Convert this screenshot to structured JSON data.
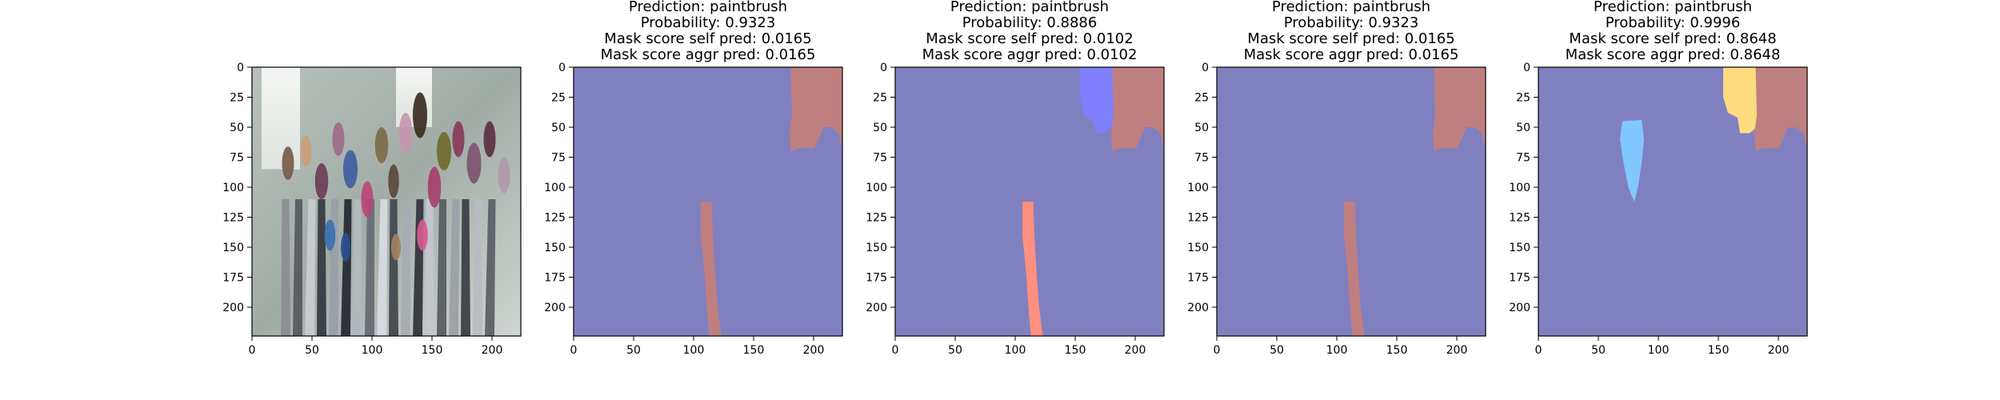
{
  "figure": {
    "background": "#ffffff"
  },
  "chart_data": [
    {
      "type": "heatmap",
      "content": "photo",
      "title_lines": [],
      "xlim": [
        0,
        224
      ],
      "ylim": [
        224,
        0
      ],
      "x_ticks": [
        0,
        50,
        100,
        150,
        200
      ],
      "y_ticks": [
        0,
        25,
        50,
        75,
        100,
        125,
        150,
        175,
        200
      ],
      "regions": []
    },
    {
      "type": "heatmap",
      "content": "mask",
      "title_lines": [
        "Prediction: paintbrush",
        "Probability: 0.9323",
        "Mask score self pred: 0.0165",
        "Mask score aggr pred: 0.0165"
      ],
      "xlim": [
        0,
        224
      ],
      "ylim": [
        224,
        0
      ],
      "x_ticks": [
        0,
        50,
        100,
        150,
        200
      ],
      "y_ticks": [
        0,
        25,
        50,
        75,
        100,
        125,
        150,
        175,
        200
      ],
      "background_color": "#8080c0",
      "regions": [
        {
          "color": "#c07f7f",
          "points": [
            [
              181,
              0
            ],
            [
              224,
              0
            ],
            [
              224,
              70
            ],
            [
              221,
              55
            ],
            [
              215,
              50
            ],
            [
              208,
              50
            ],
            [
              204,
              60
            ],
            [
              200,
              68
            ],
            [
              194,
              67
            ],
            [
              186,
              68
            ],
            [
              181,
              70
            ],
            [
              180,
              55
            ],
            [
              182,
              40
            ]
          ]
        },
        {
          "color": "#c07f7f",
          "points": [
            [
              106,
              112
            ],
            [
              115,
              112
            ],
            [
              116,
              140
            ],
            [
              118,
              175
            ],
            [
              120,
              200
            ],
            [
              123,
              224
            ],
            [
              113,
              224
            ],
            [
              111,
              200
            ],
            [
              109,
              170
            ],
            [
              106,
              140
            ]
          ]
        }
      ]
    },
    {
      "type": "heatmap",
      "content": "mask",
      "title_lines": [
        "Prediction: paintbrush",
        "Probability: 0.8886",
        "Mask score self pred: 0.0102",
        "Mask score aggr pred: 0.0102"
      ],
      "xlim": [
        0,
        224
      ],
      "ylim": [
        224,
        0
      ],
      "x_ticks": [
        0,
        50,
        100,
        150,
        200
      ],
      "y_ticks": [
        0,
        25,
        50,
        75,
        100,
        125,
        150,
        175,
        200
      ],
      "background_color": "#8080c0",
      "regions": [
        {
          "color": "#8080ff",
          "points": [
            [
              154,
              0
            ],
            [
              186,
              0
            ],
            [
              185,
              30
            ],
            [
              181,
              50
            ],
            [
              174,
              55
            ],
            [
              168,
              55
            ],
            [
              165,
              45
            ],
            [
              157,
              40
            ],
            [
              154,
              25
            ]
          ]
        },
        {
          "color": "#c07f7f",
          "points": [
            [
              181,
              0
            ],
            [
              224,
              0
            ],
            [
              224,
              70
            ],
            [
              221,
              55
            ],
            [
              215,
              50
            ],
            [
              208,
              50
            ],
            [
              204,
              60
            ],
            [
              200,
              68
            ],
            [
              194,
              67
            ],
            [
              186,
              68
            ],
            [
              181,
              70
            ],
            [
              180,
              55
            ],
            [
              182,
              40
            ]
          ]
        },
        {
          "color": "#ff8f80",
          "points": [
            [
              106,
              112
            ],
            [
              115,
              112
            ],
            [
              116,
              140
            ],
            [
              118,
              175
            ],
            [
              120,
              200
            ],
            [
              123,
              224
            ],
            [
              113,
              224
            ],
            [
              111,
              200
            ],
            [
              109,
              170
            ],
            [
              106,
              140
            ]
          ]
        }
      ]
    },
    {
      "type": "heatmap",
      "content": "mask",
      "title_lines": [
        "Prediction: paintbrush",
        "Probability: 0.9323",
        "Mask score self pred: 0.0165",
        "Mask score aggr pred: 0.0165"
      ],
      "xlim": [
        0,
        224
      ],
      "ylim": [
        224,
        0
      ],
      "x_ticks": [
        0,
        50,
        100,
        150,
        200
      ],
      "y_ticks": [
        0,
        25,
        50,
        75,
        100,
        125,
        150,
        175,
        200
      ],
      "background_color": "#8080c0",
      "regions": [
        {
          "color": "#c07f7f",
          "points": [
            [
              181,
              0
            ],
            [
              224,
              0
            ],
            [
              224,
              70
            ],
            [
              221,
              55
            ],
            [
              215,
              50
            ],
            [
              208,
              50
            ],
            [
              204,
              60
            ],
            [
              200,
              68
            ],
            [
              194,
              67
            ],
            [
              186,
              68
            ],
            [
              181,
              70
            ],
            [
              180,
              55
            ],
            [
              182,
              40
            ]
          ]
        },
        {
          "color": "#c07f7f",
          "points": [
            [
              106,
              112
            ],
            [
              115,
              112
            ],
            [
              116,
              140
            ],
            [
              118,
              175
            ],
            [
              120,
              200
            ],
            [
              123,
              224
            ],
            [
              113,
              224
            ],
            [
              111,
              200
            ],
            [
              109,
              170
            ],
            [
              106,
              140
            ]
          ]
        }
      ]
    },
    {
      "type": "heatmap",
      "content": "mask",
      "title_lines": [
        "Prediction: paintbrush",
        "Probability: 0.9996",
        "Mask score self pred: 0.8648",
        "Mask score aggr pred: 0.8648"
      ],
      "xlim": [
        0,
        224
      ],
      "ylim": [
        224,
        0
      ],
      "x_ticks": [
        0,
        50,
        100,
        150,
        200
      ],
      "y_ticks": [
        0,
        25,
        50,
        75,
        100,
        125,
        150,
        175,
        200
      ],
      "background_color": "#8080c0",
      "regions": [
        {
          "color": "#ffdc80",
          "points": [
            [
              154,
              0
            ],
            [
              186,
              0
            ],
            [
              185,
              30
            ],
            [
              182,
              50
            ],
            [
              176,
              55
            ],
            [
              168,
              55
            ],
            [
              166,
              42
            ],
            [
              158,
              38
            ],
            [
              154,
              25
            ]
          ]
        },
        {
          "color": "#c07f7f",
          "points": [
            [
              181,
              0
            ],
            [
              224,
              0
            ],
            [
              224,
              70
            ],
            [
              221,
              55
            ],
            [
              215,
              50
            ],
            [
              208,
              50
            ],
            [
              204,
              60
            ],
            [
              200,
              68
            ],
            [
              194,
              67
            ],
            [
              186,
              68
            ],
            [
              181,
              70
            ],
            [
              180,
              55
            ],
            [
              182,
              40
            ]
          ]
        },
        {
          "color": "#80c8ff",
          "points": [
            [
              70,
              45
            ],
            [
              86,
              44
            ],
            [
              88,
              60
            ],
            [
              86,
              80
            ],
            [
              83,
              100
            ],
            [
              80,
              112
            ],
            [
              78,
              108
            ],
            [
              75,
              100
            ],
            [
              71,
              80
            ],
            [
              68,
              60
            ]
          ]
        }
      ]
    }
  ]
}
